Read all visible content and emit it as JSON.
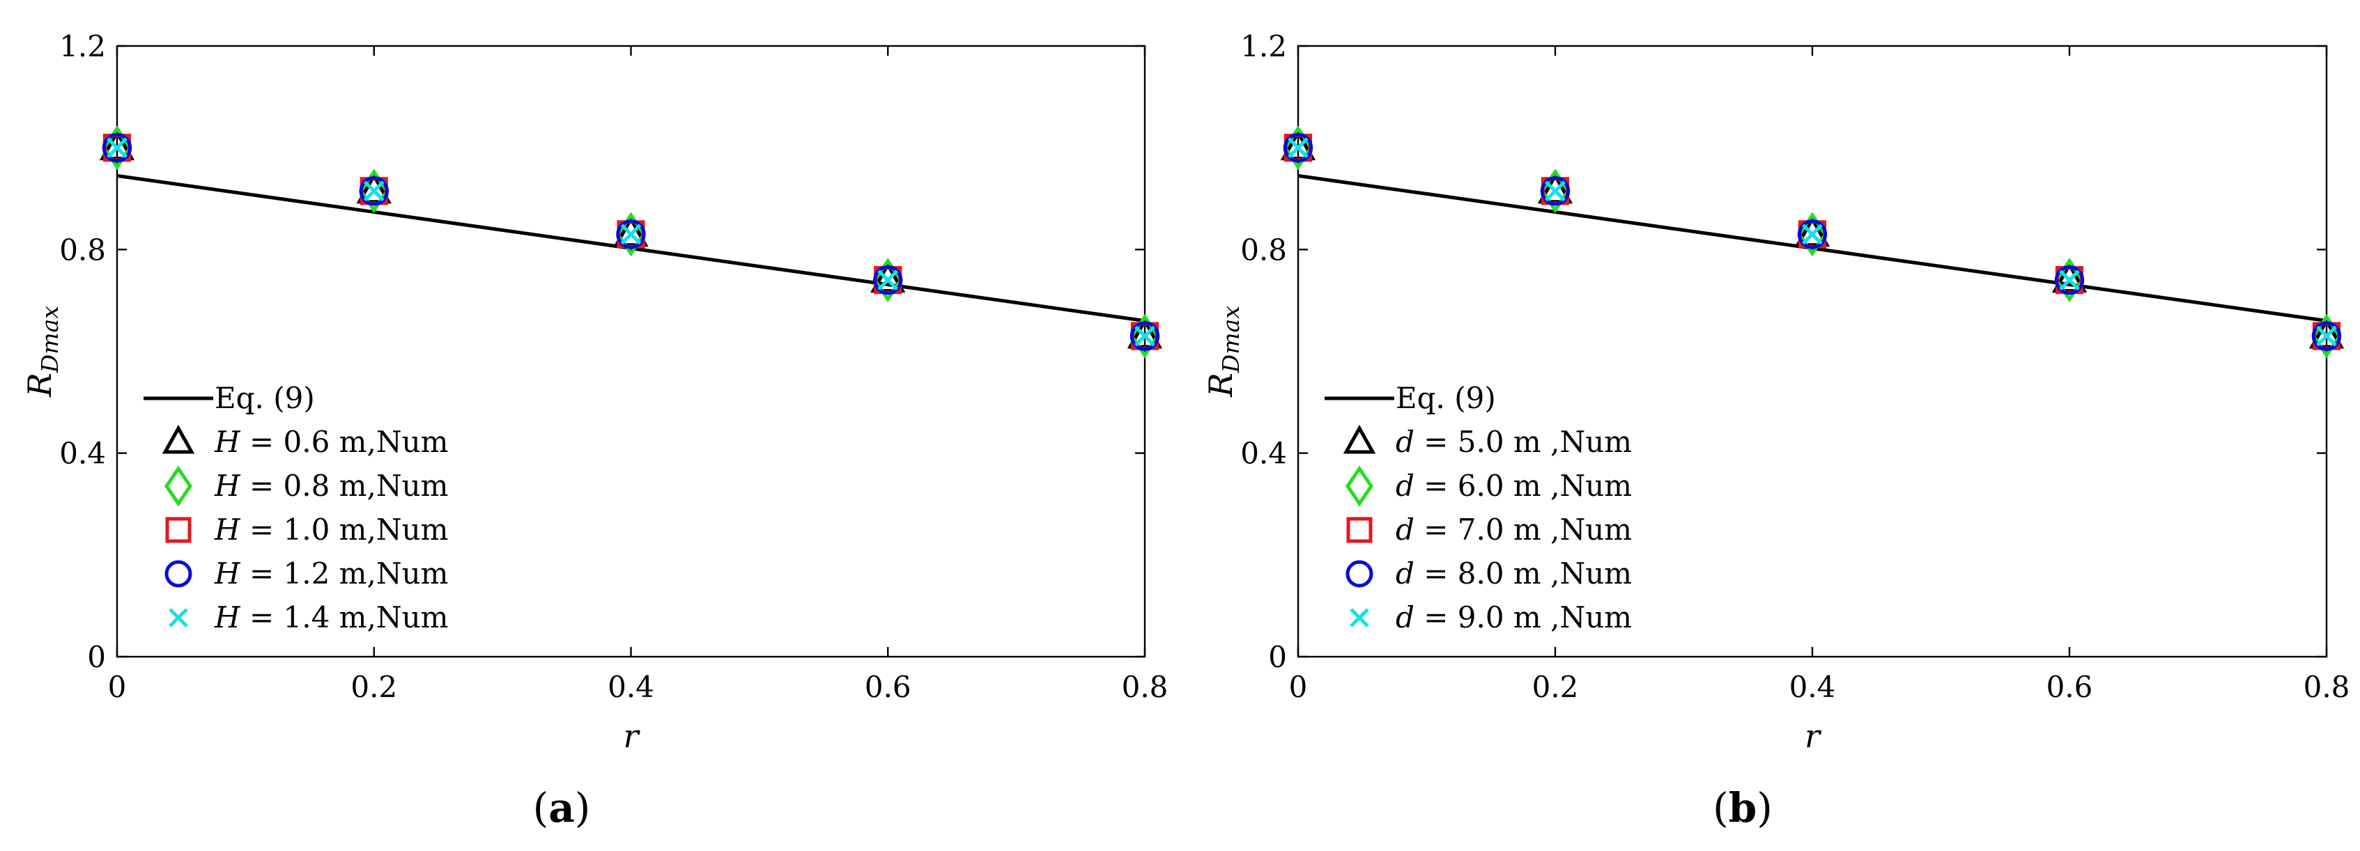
{
  "colors": {
    "line": "#000000",
    "triangle": "#000000",
    "diamond": "#22dd22",
    "square": "#e8161b",
    "circle": "#0a0ad8",
    "cross": "#14e0e8"
  },
  "chart_data": [
    {
      "type": "scatter",
      "panel_label": "a",
      "xlabel": "r",
      "ylabel": "R",
      "ylabel_sub": "Dmax",
      "xlim": [
        0,
        0.8
      ],
      "ylim": [
        0,
        1.2
      ],
      "xticks": [
        "0",
        "0.2",
        "0.4",
        "0.6",
        "0.8"
      ],
      "yticks": [
        "0",
        "0.4",
        "0.8",
        "1.2"
      ],
      "legend_position": "bottom-left",
      "line": {
        "name": "Eq. (9)",
        "x": [
          0,
          0.8
        ],
        "y": [
          0.945,
          0.66
        ]
      },
      "series": [
        {
          "var": "H",
          "name": " = 0.6 m,Num",
          "marker": "triangle",
          "x": [
            0,
            0.2,
            0.4,
            0.6,
            0.8
          ],
          "y": [
            1.0,
            0.915,
            0.83,
            0.74,
            0.63
          ]
        },
        {
          "var": "H",
          "name": " = 0.8 m,Num",
          "marker": "diamond",
          "x": [
            0,
            0.2,
            0.4,
            0.6,
            0.8
          ],
          "y": [
            1.0,
            0.915,
            0.83,
            0.74,
            0.63
          ]
        },
        {
          "var": "H",
          "name": " = 1.0 m,Num",
          "marker": "square",
          "x": [
            0,
            0.2,
            0.4,
            0.6,
            0.8
          ],
          "y": [
            1.0,
            0.915,
            0.83,
            0.74,
            0.63
          ]
        },
        {
          "var": "H",
          "name": " = 1.2 m,Num",
          "marker": "circle",
          "x": [
            0,
            0.2,
            0.4,
            0.6,
            0.8
          ],
          "y": [
            1.0,
            0.915,
            0.83,
            0.74,
            0.63
          ]
        },
        {
          "var": "H",
          "name": " = 1.4 m,Num",
          "marker": "cross",
          "x": [
            0,
            0.2,
            0.4,
            0.6,
            0.8
          ],
          "y": [
            1.0,
            0.915,
            0.83,
            0.74,
            0.63
          ]
        }
      ]
    },
    {
      "type": "scatter",
      "panel_label": "b",
      "xlabel": "r",
      "ylabel": "R",
      "ylabel_sub": "Dmax",
      "xlim": [
        0,
        0.8
      ],
      "ylim": [
        0,
        1.2
      ],
      "xticks": [
        "0",
        "0.2",
        "0.4",
        "0.6",
        "0.8"
      ],
      "yticks": [
        "0",
        "0.4",
        "0.8",
        "1.2"
      ],
      "legend_position": "bottom-left",
      "line": {
        "name": "Eq. (9)",
        "x": [
          0,
          0.8
        ],
        "y": [
          0.945,
          0.66
        ]
      },
      "series": [
        {
          "var": "d",
          "name": " = 5.0 m ,Num",
          "marker": "triangle",
          "x": [
            0,
            0.2,
            0.4,
            0.6,
            0.8
          ],
          "y": [
            1.0,
            0.915,
            0.83,
            0.74,
            0.63
          ]
        },
        {
          "var": "d",
          "name": " = 6.0 m ,Num",
          "marker": "diamond",
          "x": [
            0,
            0.2,
            0.4,
            0.6,
            0.8
          ],
          "y": [
            1.0,
            0.915,
            0.83,
            0.74,
            0.63
          ]
        },
        {
          "var": "d",
          "name": " = 7.0 m ,Num",
          "marker": "square",
          "x": [
            0,
            0.2,
            0.4,
            0.6,
            0.8
          ],
          "y": [
            1.0,
            0.915,
            0.83,
            0.74,
            0.63
          ]
        },
        {
          "var": "d",
          "name": " = 8.0 m ,Num",
          "marker": "circle",
          "x": [
            0,
            0.2,
            0.4,
            0.6,
            0.8
          ],
          "y": [
            1.0,
            0.915,
            0.83,
            0.74,
            0.63
          ]
        },
        {
          "var": "d",
          "name": " = 9.0 m ,Num",
          "marker": "cross",
          "x": [
            0,
            0.2,
            0.4,
            0.6,
            0.8
          ],
          "y": [
            1.0,
            0.915,
            0.83,
            0.74,
            0.63
          ]
        }
      ]
    }
  ]
}
